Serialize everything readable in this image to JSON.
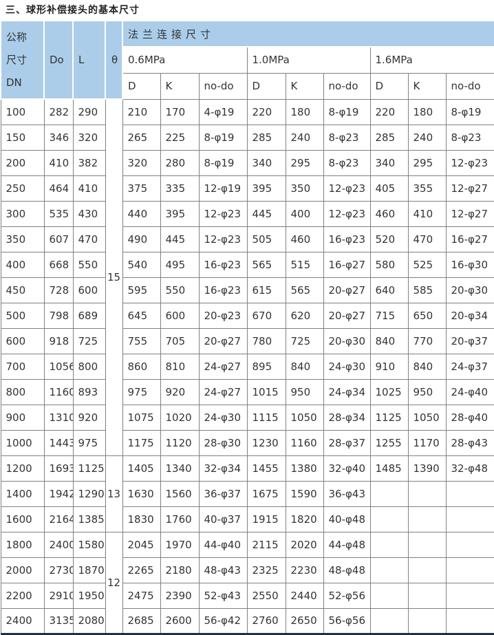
{
  "title": "三、球形补偿接头的基本尺寸",
  "colors": {
    "header_bg": "#abcdea",
    "grid_border": "#808080",
    "table_top_border": "#46535e",
    "table_bottom_border": "#1d3245",
    "text": "#333333",
    "page_bg": "#ffffff"
  },
  "table": {
    "header": {
      "dn_lines": [
        "公称",
        "尺寸",
        "DN"
      ],
      "do": "Do",
      "l": "L",
      "theta": "θ",
      "flange": "法兰连接尺寸",
      "pressures": [
        "0.6MPa",
        "1.0MPa",
        "1.6MPa"
      ],
      "sub": [
        "D",
        "K",
        "no-do"
      ]
    },
    "theta_groups": [
      {
        "value": "15",
        "rows": 14
      },
      {
        "value": "13",
        "rows": 3
      },
      {
        "value": "12",
        "rows": 4
      }
    ],
    "rows": [
      [
        "100",
        "282",
        "290",
        "210",
        "170",
        "4-φ19",
        "220",
        "180",
        "8-φ19",
        "220",
        "180",
        "8-φ19"
      ],
      [
        "150",
        "346",
        "320",
        "265",
        "225",
        "8-φ19",
        "285",
        "240",
        "8-φ23",
        "285",
        "240",
        "8-φ23"
      ],
      [
        "200",
        "410",
        "382",
        "320",
        "280",
        "8-φ19",
        "340",
        "295",
        "8-φ23",
        "340",
        "295",
        "12-φ23"
      ],
      [
        "250",
        "464",
        "410",
        "375",
        "335",
        "12-φ19",
        "395",
        "350",
        "12-φ23",
        "405",
        "355",
        "12-φ27"
      ],
      [
        "300",
        "535",
        "430",
        "440",
        "395",
        "12-φ23",
        "445",
        "400",
        "12-φ23",
        "460",
        "410",
        "12-φ27"
      ],
      [
        "350",
        "607",
        "470",
        "490",
        "445",
        "12-φ23",
        "505",
        "460",
        "16-φ23",
        "520",
        "470",
        "16-φ27"
      ],
      [
        "400",
        "668",
        "550",
        "540",
        "495",
        "16-φ23",
        "565",
        "515",
        "16-φ27",
        "580",
        "525",
        "16-φ30"
      ],
      [
        "450",
        "728",
        "600",
        "595",
        "550",
        "16-φ23",
        "615",
        "565",
        "20-φ27",
        "640",
        "585",
        "20-φ30"
      ],
      [
        "500",
        "798",
        "689",
        "645",
        "600",
        "20-φ23",
        "670",
        "620",
        "20-φ27",
        "715",
        "650",
        "20-φ34"
      ],
      [
        "600",
        "918",
        "725",
        "755",
        "705",
        "20-φ27",
        "780",
        "725",
        "20-φ30",
        "840",
        "770",
        "20-φ37"
      ],
      [
        "700",
        "1056",
        "800",
        "860",
        "810",
        "24-φ27",
        "895",
        "840",
        "24-φ30",
        "910",
        "840",
        "24-φ37"
      ],
      [
        "800",
        "1160",
        "893",
        "975",
        "920",
        "24-φ27",
        "1015",
        "950",
        "24-φ34",
        "1025",
        "950",
        "24-φ40"
      ],
      [
        "900",
        "1310",
        "920",
        "1075",
        "1020",
        "24-φ30",
        "1115",
        "1050",
        "28-φ34",
        "1125",
        "1050",
        "28-φ40"
      ],
      [
        "1000",
        "1443",
        "975",
        "1175",
        "1120",
        "28-φ30",
        "1230",
        "1160",
        "28-φ37",
        "1255",
        "1170",
        "28-φ43"
      ],
      [
        "1200",
        "1693",
        "1125",
        "1405",
        "1340",
        "32-φ34",
        "1455",
        "1380",
        "32-φ40",
        "1485",
        "1390",
        "32-φ48"
      ],
      [
        "1400",
        "1942",
        "1290",
        "1630",
        "1560",
        "36-φ37",
        "1675",
        "1590",
        "36-φ43",
        "",
        "",
        ""
      ],
      [
        "1600",
        "2164",
        "1385",
        "1830",
        "1760",
        "40-φ37",
        "1915",
        "1820",
        "40-φ48",
        "",
        "",
        ""
      ],
      [
        "1800",
        "2400",
        "1580",
        "2045",
        "1970",
        "44-φ40",
        "2115",
        "2020",
        "44-φ48",
        "",
        "",
        ""
      ],
      [
        "2000",
        "2730",
        "1870",
        "2265",
        "2180",
        "48-φ43",
        "2325",
        "2230",
        "48-φ48",
        "",
        "",
        ""
      ],
      [
        "2200",
        "2910",
        "1950",
        "2475",
        "2390",
        "52-φ43",
        "2550",
        "2440",
        "52-φ56",
        "",
        "",
        ""
      ],
      [
        "2400",
        "3135",
        "2080",
        "2685",
        "2600",
        "56-φ42",
        "2760",
        "2650",
        "56-φ56",
        "",
        "",
        ""
      ]
    ]
  }
}
